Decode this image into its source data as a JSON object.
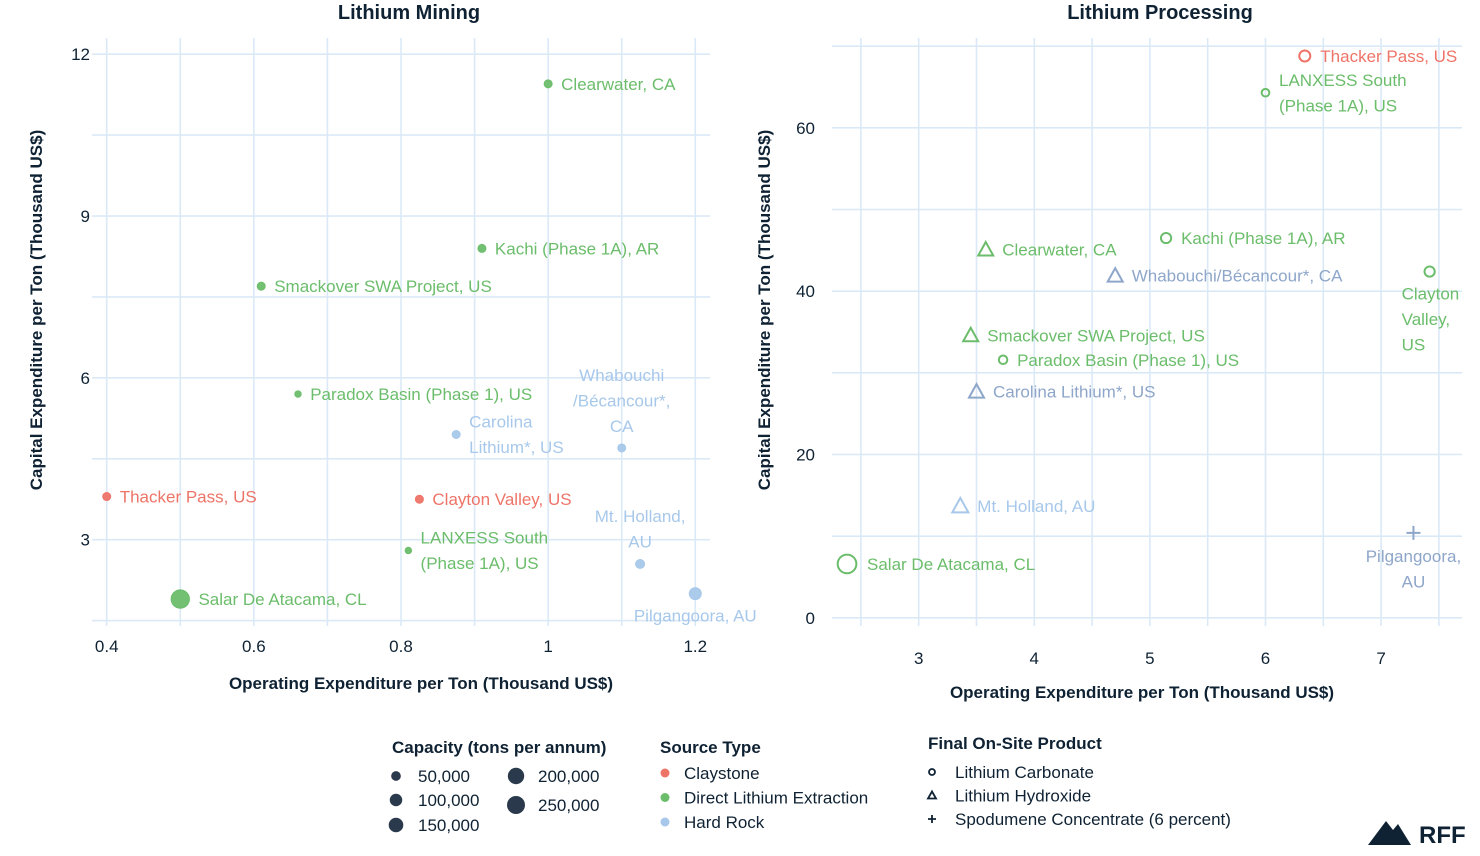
{
  "colors": {
    "Claystone": "#ee7468",
    "Direct Lithium Extraction": "#6bbd6b",
    "Hard Rock": "#a7c8ea",
    "Hard Rock Processing": "#8ea6c9"
  },
  "chart_data": [
    {
      "type": "scatter",
      "title": "Lithium Mining",
      "xlabel": "Operating Expenditure per Ton (Thousand US$)",
      "ylabel": "Capital Expenditure per Ton (Thousand US$)",
      "xlim": [
        0.38,
        1.22
      ],
      "ylim": [
        1.4,
        12.3
      ],
      "xticks": [
        0.4,
        0.6,
        0.8,
        1,
        1.2
      ],
      "xtick_labels": [
        "0.4",
        "0.6",
        "0.8",
        "1",
        "1.2"
      ],
      "yticks": [
        3,
        6,
        9,
        12
      ],
      "ytick_labels": [
        "3",
        "6",
        "9",
        "12"
      ],
      "grid": true,
      "points": [
        {
          "name": "Clearwater, CA",
          "lines": [
            "Clearwater, CA"
          ],
          "x": 1.0,
          "y": 11.45,
          "source": "Direct Lithium Extraction",
          "capacity": 40000,
          "labelPos": "right"
        },
        {
          "name": "Kachi (Phase 1A), AR",
          "lines": [
            "Kachi (Phase 1A), AR"
          ],
          "x": 0.91,
          "y": 8.4,
          "source": "Direct Lithium Extraction",
          "capacity": 40000,
          "labelPos": "right"
        },
        {
          "name": "Smackover SWA Project, US",
          "lines": [
            "Smackover SWA Project, US"
          ],
          "x": 0.61,
          "y": 7.7,
          "source": "Direct Lithium Extraction",
          "capacity": 40000,
          "labelPos": "right"
        },
        {
          "name": "Paradox Basin (Phase 1), US",
          "lines": [
            "Paradox Basin (Phase 1), US"
          ],
          "x": 0.66,
          "y": 5.7,
          "source": "Direct Lithium Extraction",
          "capacity": 20000,
          "labelPos": "right"
        },
        {
          "name": "Carolina Lithium*, US",
          "lines": [
            "Carolina",
            "Lithium*, US"
          ],
          "x": 0.875,
          "y": 4.95,
          "source": "Hard Rock",
          "capacity": 40000,
          "labelPos": "right"
        },
        {
          "name": "Whabouchi /Bécancour*, CA",
          "lines": [
            "Whabouchi",
            "/Bécancour*,",
            "CA"
          ],
          "x": 1.1,
          "y": 4.7,
          "source": "Hard Rock",
          "capacity": 40000,
          "labelPos": "above"
        },
        {
          "name": "Thacker Pass, US",
          "lines": [
            "Thacker Pass, US"
          ],
          "x": 0.4,
          "y": 3.8,
          "source": "Claystone",
          "capacity": 40000,
          "labelPos": "right"
        },
        {
          "name": "Clayton Valley, US",
          "lines": [
            "Clayton Valley, US"
          ],
          "x": 0.825,
          "y": 3.75,
          "source": "Claystone",
          "capacity": 40000,
          "labelPos": "right"
        },
        {
          "name": "LANXESS South (Phase 1A), US",
          "lines": [
            "LANXESS South",
            "(Phase 1A), US"
          ],
          "x": 0.81,
          "y": 2.8,
          "source": "Direct Lithium Extraction",
          "capacity": 15000,
          "labelPos": "right"
        },
        {
          "name": "Mt. Holland, AU",
          "lines": [
            "Mt. Holland,",
            "AU"
          ],
          "x": 1.125,
          "y": 2.55,
          "source": "Hard Rock",
          "capacity": 50000,
          "labelPos": "above"
        },
        {
          "name": "Pilgangoora, AU",
          "lines": [
            "Pilgangoora, AU"
          ],
          "x": 1.2,
          "y": 2.0,
          "source": "Hard Rock",
          "capacity": 90000,
          "labelPos": "below"
        },
        {
          "name": "Salar De Atacama, CL",
          "lines": [
            "Salar De Atacama, CL"
          ],
          "x": 0.5,
          "y": 1.9,
          "source": "Direct Lithium Extraction",
          "capacity": 210000,
          "labelPos": "right"
        }
      ]
    },
    {
      "type": "scatter",
      "title": "Lithium Processing",
      "xlabel": "Operating Expenditure per Ton (Thousand US$)",
      "ylabel": "Capital Expenditure per Ton (Thousand US$)",
      "xlim": [
        2.25,
        7.7
      ],
      "ylim": [
        -1,
        71
      ],
      "xticks": [
        3,
        4,
        5,
        6,
        7
      ],
      "xtick_labels": [
        "3",
        "4",
        "5",
        "6",
        "7"
      ],
      "yticks": [
        0,
        20,
        40,
        60
      ],
      "ytick_labels": [
        "0",
        "20",
        "40",
        "60"
      ],
      "grid": true,
      "points": [
        {
          "name": "Thacker Pass, US",
          "lines": [
            "Thacker Pass, US"
          ],
          "x": 6.34,
          "y": 68.8,
          "source": "Claystone",
          "product": "Lithium Carbonate",
          "size": 9,
          "labelPos": "right"
        },
        {
          "name": "LANXESS South (Phase 1A), US",
          "lines": [
            "LANXESS South",
            "(Phase 1A), US"
          ],
          "x": 6.0,
          "y": 64.3,
          "source": "Direct Lithium Extraction",
          "product": "Lithium Carbonate",
          "size": 5,
          "labelPos": "right"
        },
        {
          "name": "Kachi (Phase 1A), AR",
          "lines": [
            "Kachi (Phase 1A), AR"
          ],
          "x": 5.14,
          "y": 46.5,
          "source": "Direct Lithium Extraction",
          "product": "Lithium Carbonate",
          "size": 8,
          "labelPos": "right"
        },
        {
          "name": "Clearwater, CA",
          "lines": [
            "Clearwater, CA"
          ],
          "x": 3.58,
          "y": 45.1,
          "source": "Direct Lithium Extraction",
          "product": "Lithium Hydroxide",
          "size": 11,
          "labelPos": "right"
        },
        {
          "name": "Whabouchi/Bécancour*, CA",
          "lines": [
            "Whabouchi/Bécancour*, CA"
          ],
          "x": 4.7,
          "y": 41.9,
          "source": "Hard Rock Processing",
          "product": "Lithium Hydroxide",
          "size": 11,
          "labelPos": "right"
        },
        {
          "name": "Clayton Valley, US",
          "lines": [
            "Clayton",
            "Valley,",
            "US"
          ],
          "x": 7.42,
          "y": 42.4,
          "source": "Direct Lithium Extraction",
          "product": "Lithium Carbonate",
          "size": 8,
          "labelPos": "belowleft"
        },
        {
          "name": "Smackover SWA Project, US",
          "lines": [
            "Smackover SWA Project, US"
          ],
          "x": 3.45,
          "y": 34.6,
          "source": "Direct Lithium Extraction",
          "product": "Lithium Hydroxide",
          "size": 11,
          "labelPos": "right"
        },
        {
          "name": "Paradox Basin (Phase 1), US",
          "lines": [
            "Paradox Basin (Phase 1), US"
          ],
          "x": 3.73,
          "y": 31.6,
          "source": "Direct Lithium Extraction",
          "product": "Lithium Carbonate",
          "size": 6,
          "labelPos": "right"
        },
        {
          "name": "Carolina Lithium*, US",
          "lines": [
            "Carolina Lithium*, US"
          ],
          "x": 3.5,
          "y": 27.7,
          "source": "Hard Rock Processing",
          "product": "Lithium Hydroxide",
          "size": 11,
          "labelPos": "right"
        },
        {
          "name": "Mt. Holland, AU",
          "lines": [
            "Mt. Holland, AU"
          ],
          "x": 3.36,
          "y": 13.7,
          "source": "Hard Rock",
          "product": "Lithium Hydroxide",
          "size": 12,
          "labelPos": "right"
        },
        {
          "name": "Pilgangoora, AU",
          "lines": [
            "Pilgangoora,",
            "AU"
          ],
          "x": 7.28,
          "y": 10.4,
          "source": "Hard Rock Processing",
          "product": "Spodumene Concentrate (6 percent)",
          "size": 10,
          "labelPos": "below"
        },
        {
          "name": "Salar De Atacama, CL",
          "lines": [
            "Salar De Atacama, CL"
          ],
          "x": 2.38,
          "y": 6.6,
          "source": "Direct Lithium Extraction",
          "product": "Lithium Carbonate",
          "size": 18,
          "labelPos": "right"
        }
      ]
    }
  ],
  "legend": {
    "capacity_title": "Capacity (tons per annum)",
    "capacity_items": [
      {
        "label": "50,000",
        "value": 50000
      },
      {
        "label": "100,000",
        "value": 100000
      },
      {
        "label": "150,000",
        "value": 150000
      },
      {
        "label": "200,000",
        "value": 200000
      },
      {
        "label": "250,000",
        "value": 250000
      }
    ],
    "source_title": "Source Type",
    "source_items": [
      {
        "label": "Claystone",
        "color": "#ee7468"
      },
      {
        "label": "Direct Lithium Extraction",
        "color": "#6bbd6b"
      },
      {
        "label": "Hard Rock",
        "color": "#a7c8ea"
      }
    ],
    "product_title": "Final On-Site Product",
    "product_items": [
      {
        "label": "Lithium Carbonate",
        "icon": "circle-icon"
      },
      {
        "label": "Lithium Hydroxide",
        "icon": "triangle-icon"
      },
      {
        "label": "Spodumene Concentrate (6 percent)",
        "icon": "plus-icon"
      }
    ]
  },
  "logo": {
    "text": "RFF",
    "icon": "mountain-logo-icon"
  }
}
